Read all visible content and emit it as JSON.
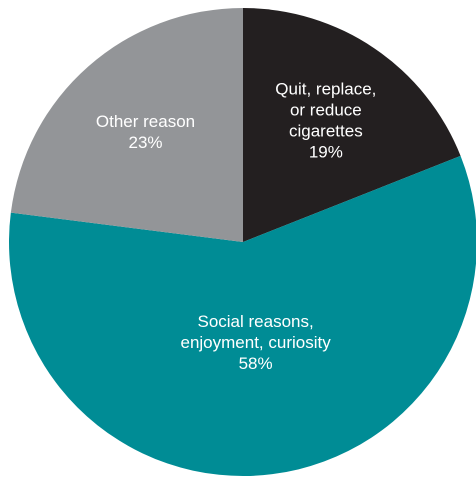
{
  "chart_data": {
    "type": "pie",
    "title": "",
    "start_angle_deg": 0,
    "direction": "clockwise",
    "legend": "none",
    "slices": [
      {
        "label_lines": [
          "Quit, replace,",
          "or reduce",
          "cigarettes"
        ],
        "value_label": "19%",
        "value": 19,
        "color": "#231f20"
      },
      {
        "label_lines": [
          "Social reasons,",
          "enjoyment, curiosity"
        ],
        "value_label": "58%",
        "value": 58,
        "color": "#008c95"
      },
      {
        "label_lines": [
          "Other reason"
        ],
        "value_label": "23%",
        "value": 23,
        "color": "#939598"
      }
    ]
  }
}
